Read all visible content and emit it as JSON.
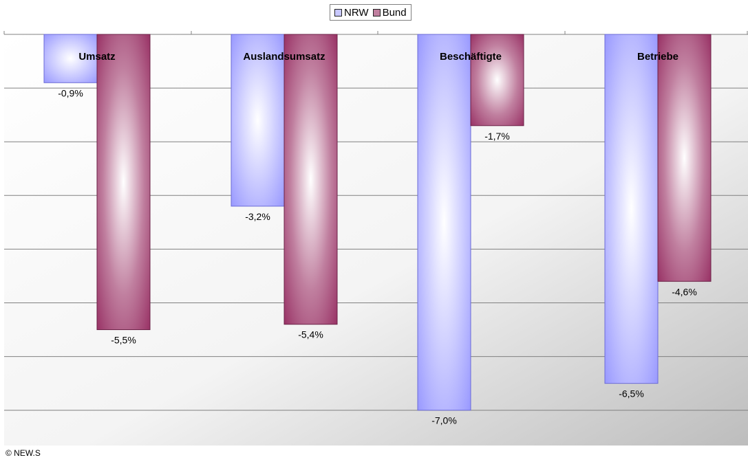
{
  "chart_data": {
    "type": "bar",
    "categories": [
      "Umsatz",
      "Auslandsumsatz",
      "Beschäftigte",
      "Betriebe"
    ],
    "series": [
      {
        "name": "NRW",
        "color": "#9999ff",
        "values": [
          -0.9,
          -3.2,
          -7.0,
          -6.5
        ],
        "labels": [
          "-0,9%",
          "-3,2%",
          "-7,0%",
          "-6,5%"
        ]
      },
      {
        "name": "Bund",
        "color": "#993366",
        "values": [
          -5.5,
          -5.4,
          -1.7,
          -4.6
        ],
        "labels": [
          "-5,5%",
          "-5,4%",
          "-1,7%",
          "-4,6%"
        ]
      }
    ],
    "ylim": [
      -7.5,
      0
    ],
    "grid": true,
    "legend": "top-center"
  },
  "credit": "© NEW.S"
}
